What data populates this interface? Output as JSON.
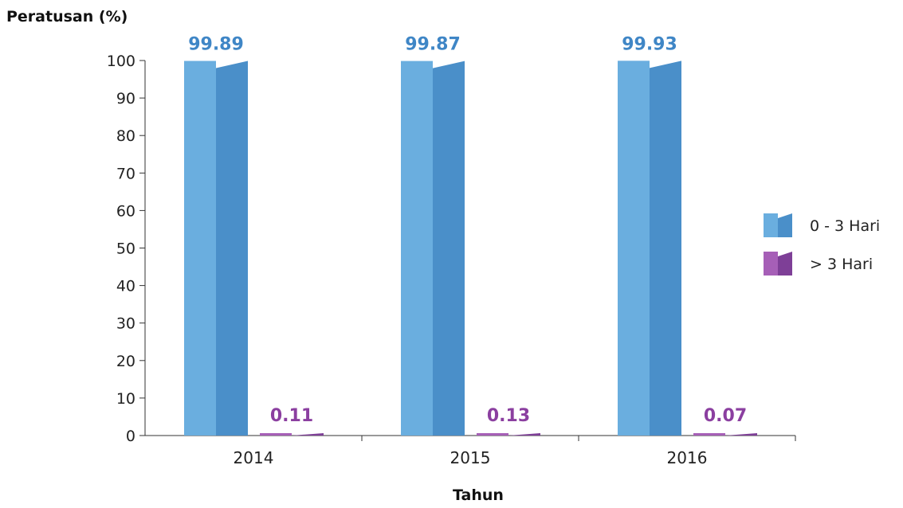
{
  "chart_data": {
    "type": "bar",
    "ylabel": "Peratusan (%)",
    "xlabel": "Tahun",
    "categories": [
      "2014",
      "2015",
      "2016"
    ],
    "ylim": [
      0,
      100
    ],
    "yticks": [
      "0",
      "10",
      "20",
      "30",
      "40",
      "50",
      "60",
      "70",
      "80",
      "90",
      "100"
    ],
    "grid": false,
    "legend_position": "right",
    "series": [
      {
        "name": "0 - 3 Hari",
        "values": [
          99.89,
          99.87,
          99.93
        ],
        "labels": [
          "99.89",
          "99.87",
          "99.93"
        ],
        "color_light": "#6aaedf",
        "color_dark": "#4a8fc9",
        "label_color": "#3f86c6"
      },
      {
        "name": "> 3 Hari",
        "values": [
          0.11,
          0.13,
          0.07
        ],
        "labels": [
          "0.11",
          "0.13",
          "0.07"
        ],
        "color_light": "#a65fb7",
        "color_dark": "#7e3f97",
        "label_color": "#8b3fa0"
      }
    ]
  }
}
